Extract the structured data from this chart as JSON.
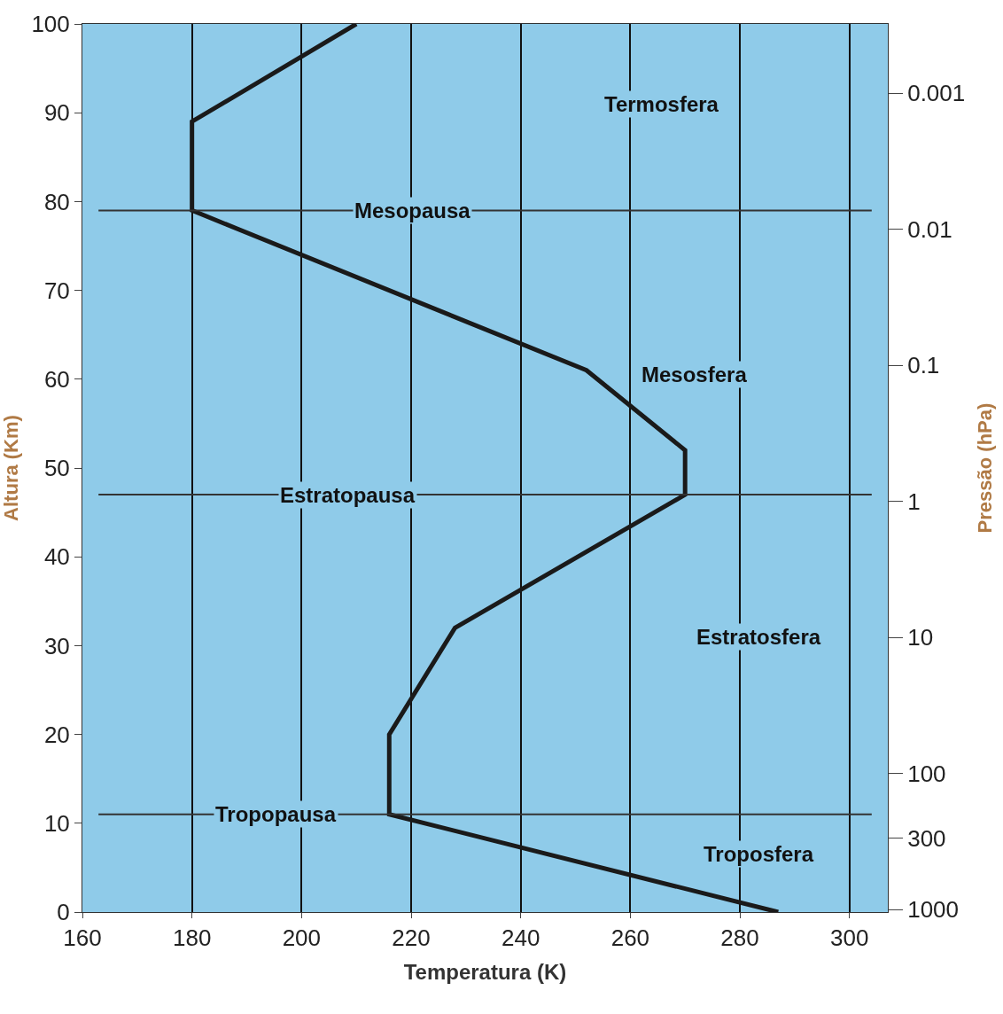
{
  "chart_data": {
    "type": "line",
    "xlabel": "Temperatura (K)",
    "ylabel": "Altura (Km)",
    "y2label": "Pressão (hPa)",
    "x": [
      287,
      216,
      216,
      228,
      270,
      270,
      252,
      180,
      180,
      210
    ],
    "series": [
      {
        "color": "#1a1a1a",
        "values": [
          0,
          11,
          20,
          32,
          47,
          52,
          61,
          79,
          89,
          100
        ]
      }
    ],
    "xlim": [
      160,
      307
    ],
    "xticks": [
      160,
      180,
      200,
      220,
      240,
      260,
      280,
      300
    ],
    "ylim": [
      0,
      100
    ],
    "yticks": [
      0,
      10,
      20,
      30,
      40,
      50,
      60,
      70,
      80,
      90,
      100
    ],
    "y2lim": [
      1046,
      0.00031
    ],
    "y2ticks": [
      0.001,
      0.01,
      0.1,
      1,
      10,
      100,
      300,
      1000
    ],
    "log": "y2",
    "ref_lines": [
      {
        "axis": "y",
        "value": 79,
        "label": "Mesopausa",
        "color": "#333333"
      },
      {
        "axis": "y",
        "value": 47,
        "label": "Estratopausa",
        "color": "#333333"
      },
      {
        "axis": "y",
        "value": 11,
        "label": "Tropopausa",
        "color": "#333333"
      }
    ],
    "annotations": [
      "Termosfera",
      "Mesosfera",
      "Estratosfera",
      "Troposfera"
    ],
    "grid": "x",
    "marker": "none",
    "line_style": "solid"
  }
}
